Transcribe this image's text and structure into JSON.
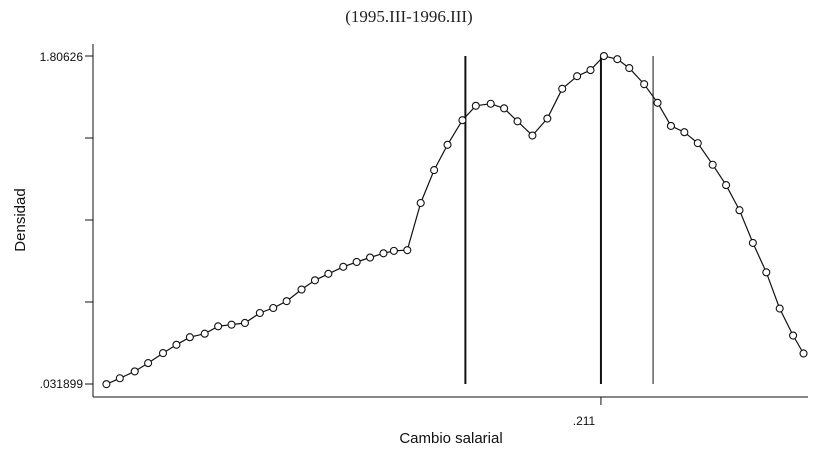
{
  "chart_data": {
    "type": "line",
    "title": "(1995.III-1996.III)",
    "xlabel": "Cambio salarial",
    "ylabel": "Densidad",
    "ylim": [
      0.031899,
      1.80626
    ],
    "xlim": [
      -0.13,
      0.35
    ],
    "y_tick_labels": [
      ".031899",
      "1.80626"
    ],
    "x_tick_labels": [
      ".211"
    ],
    "x_tick_values": [
      0.211
    ],
    "y_tick_values": [
      0.031899,
      0.475489,
      0.919079,
      1.362669,
      1.80626
    ],
    "reference_lines": [
      {
        "x": 0.12,
        "style": "thick"
      },
      {
        "x": 0.211,
        "style": "thick"
      },
      {
        "x": 0.246,
        "style": "thin"
      }
    ],
    "series": [
      {
        "points": [
          [
            -0.121,
            0.031
          ],
          [
            -0.112,
            0.063
          ],
          [
            -0.102,
            0.1
          ],
          [
            -0.093,
            0.145
          ],
          [
            -0.083,
            0.199
          ],
          [
            -0.074,
            0.244
          ],
          [
            -0.065,
            0.285
          ],
          [
            -0.055,
            0.304
          ],
          [
            -0.046,
            0.344
          ],
          [
            -0.037,
            0.353
          ],
          [
            -0.028,
            0.362
          ],
          [
            -0.018,
            0.416
          ],
          [
            -0.009,
            0.443
          ],
          [
            0.0,
            0.48
          ],
          [
            0.01,
            0.543
          ],
          [
            0.019,
            0.593
          ],
          [
            0.028,
            0.628
          ],
          [
            0.038,
            0.666
          ],
          [
            0.047,
            0.692
          ],
          [
            0.056,
            0.716
          ],
          [
            0.065,
            0.739
          ],
          [
            0.072,
            0.752
          ],
          [
            0.081,
            0.756
          ],
          [
            0.09,
            1.011
          ],
          [
            0.099,
            1.189
          ],
          [
            0.108,
            1.326
          ],
          [
            0.118,
            1.459
          ],
          [
            0.127,
            1.537
          ],
          [
            0.137,
            1.548
          ],
          [
            0.146,
            1.523
          ],
          [
            0.155,
            1.453
          ],
          [
            0.165,
            1.376
          ],
          [
            0.175,
            1.468
          ],
          [
            0.185,
            1.629
          ],
          [
            0.195,
            1.697
          ],
          [
            0.204,
            1.73
          ],
          [
            0.213,
            1.806
          ],
          [
            0.222,
            1.789
          ],
          [
            0.23,
            1.741
          ],
          [
            0.24,
            1.654
          ],
          [
            0.249,
            1.553
          ],
          [
            0.258,
            1.428
          ],
          [
            0.267,
            1.394
          ],
          [
            0.276,
            1.335
          ],
          [
            0.286,
            1.218
          ],
          [
            0.295,
            1.108
          ],
          [
            0.304,
            0.972
          ],
          [
            0.313,
            0.795
          ],
          [
            0.322,
            0.636
          ],
          [
            0.331,
            0.44
          ],
          [
            0.34,
            0.294
          ],
          [
            0.347,
            0.197
          ]
        ]
      }
    ]
  }
}
